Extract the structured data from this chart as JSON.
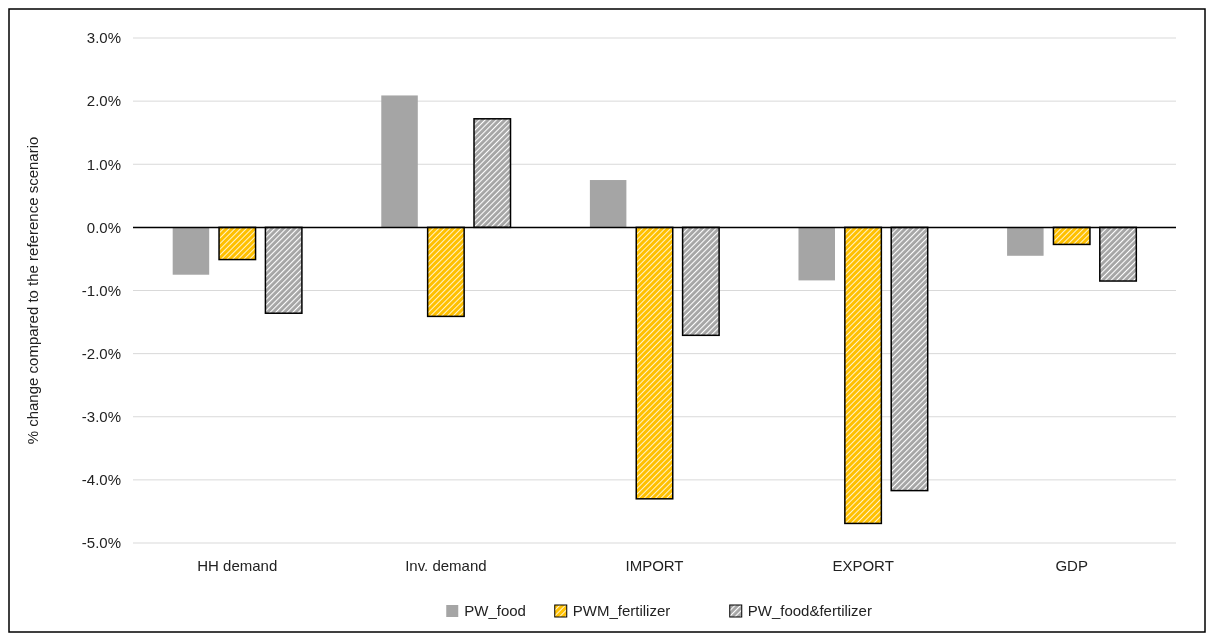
{
  "chart_data": {
    "type": "bar",
    "ylabel": "% change compared to the reference scenario",
    "categories": [
      "HH demand",
      "Inv. demand",
      "IMPORT",
      "EXPORT",
      "GDP"
    ],
    "series": [
      {
        "name": "PW_food",
        "color": "#a5a5a5",
        "values": [
          -0.75,
          2.09,
          0.75,
          -0.84,
          -0.45
        ]
      },
      {
        "name": "PWM_fertilizer",
        "color": "#ffc000",
        "values": [
          -0.51,
          -1.41,
          -4.3,
          -4.69,
          -0.27
        ]
      },
      {
        "name": "PW_food&fertilizer",
        "color": "#a5a5a5",
        "values": [
          -1.36,
          1.72,
          -1.71,
          -4.17,
          -0.85
        ]
      }
    ],
    "ylim": [
      -5,
      3
    ],
    "yticks": [
      {
        "value": 3,
        "label": "3.0%"
      },
      {
        "value": 2,
        "label": "2.0%"
      },
      {
        "value": 1,
        "label": "1.0%"
      },
      {
        "value": 0,
        "label": "0.0%"
      },
      {
        "value": -1,
        "label": "-1.0%"
      },
      {
        "value": -2,
        "label": "-2.0%"
      },
      {
        "value": -3,
        "label": "-3.0%"
      },
      {
        "value": -4,
        "label": "-4.0%"
      },
      {
        "value": -5,
        "label": "-5.0%"
      }
    ],
    "grid": "y",
    "legend": "bottom"
  }
}
